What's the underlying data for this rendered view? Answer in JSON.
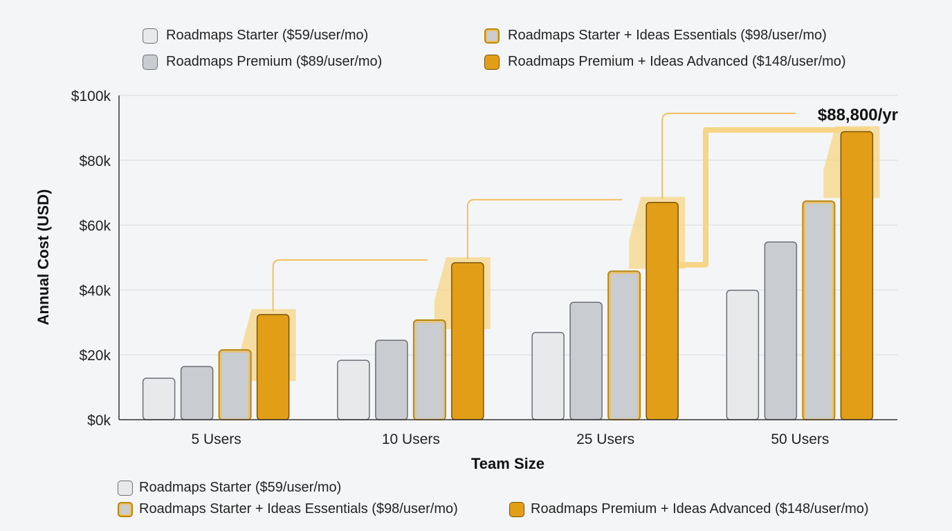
{
  "chart_data": {
    "type": "bar",
    "title": "",
    "xlabel": "Team Size",
    "ylabel": "Annual Cost (USD)",
    "ylim": [
      0,
      100000
    ],
    "yticks": [
      "$0k",
      "$20k",
      "$40k",
      "$60k",
      "$80k",
      "$100k"
    ],
    "ytick_values": [
      0,
      20000,
      40000,
      60000,
      80000,
      100000
    ],
    "grid": true,
    "categories": [
      "5 Users",
      "10 Users",
      "25 Users",
      "50 Users"
    ],
    "series": [
      {
        "name": "Roadmaps Starter ($59/user/mo)",
        "values": [
          12800,
          18300,
          26900,
          39900
        ],
        "color": "#e8e9eb"
      },
      {
        "name": "Roadmaps Premium ($89/user/mo)",
        "values": [
          16400,
          24500,
          36200,
          54800
        ],
        "color": "#c9ccd0"
      },
      {
        "name": "Roadmaps Starter + Ideas Essentials ($98/user/mo)",
        "values": [
          21500,
          30700,
          45800,
          67400
        ],
        "color": "#c9ccd0"
      },
      {
        "name": "Roadmaps Premium + Ideas Advanced ($148/user/mo)",
        "values": [
          32400,
          48400,
          67000,
          88800
        ],
        "color": "#e29e17"
      }
    ],
    "annotation": "$88,800/yr",
    "legend_top": [
      "Roadmaps Starter ($59/user/mo)",
      "Roadmaps Premium ($89/user/mo)",
      "Roadmaps Starter + Ideas Essentials ($98/user/mo)",
      "Roadmaps Premium + Ideas Advanced ($148/user/mo)"
    ],
    "legend_bottom": [
      "Roadmaps Starter ($59/user/mo)",
      "Roadmaps Starter + Ideas Essentials ($98/user/mo)",
      "Roadmaps Premium + Ideas Advanced ($148/user/mo)"
    ],
    "legend_placement": "top and bottom"
  }
}
